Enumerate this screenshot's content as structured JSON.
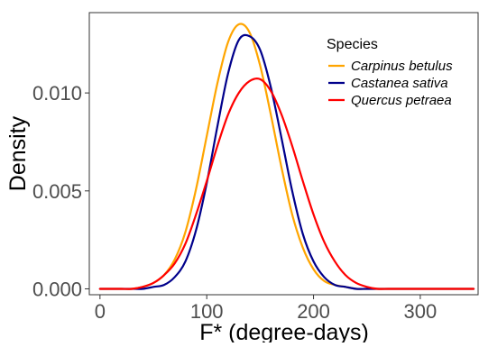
{
  "chart_data": {
    "type": "line",
    "title": "",
    "xlabel": "F* (degree-days)",
    "ylabel": "Density",
    "xlim": [
      -10,
      355
    ],
    "ylim": [
      -0.0003,
      0.0141
    ],
    "xticks": [
      0,
      100,
      200,
      300
    ],
    "xtick_labels": [
      "0",
      "100",
      "200",
      "300"
    ],
    "yticks": [
      0.0,
      0.005,
      0.01
    ],
    "ytick_labels": [
      "0.000",
      "0.005",
      "0.010"
    ],
    "grid": false,
    "legend": {
      "title": "Species",
      "position": "top-right"
    },
    "x": [
      0,
      10,
      20,
      30,
      40,
      50,
      60,
      70,
      80,
      90,
      100,
      110,
      120,
      130,
      140,
      150,
      160,
      170,
      180,
      190,
      200,
      210,
      220,
      230,
      240,
      250,
      260,
      270,
      280,
      290,
      300,
      310,
      320,
      330,
      340,
      350
    ],
    "series": [
      {
        "name": "Carpinus betulus",
        "color": "#FFA500",
        "values": [
          0.0,
          0.0,
          0.0,
          0.0,
          0.0001,
          0.0003,
          0.0007,
          0.0015,
          0.0029,
          0.0051,
          0.0078,
          0.0105,
          0.0126,
          0.0135,
          0.0131,
          0.0114,
          0.0089,
          0.0062,
          0.0038,
          0.0021,
          0.001,
          0.0004,
          0.0002,
          0.0001,
          0.0,
          0.0,
          0.0,
          0.0,
          0.0,
          0.0,
          0.0,
          0.0,
          0.0,
          0.0,
          0.0,
          0.0
        ]
      },
      {
        "name": "Castanea sativa",
        "color": "#00008B",
        "values": [
          0.0,
          0.0,
          0.0,
          0.0,
          0.0,
          0.0001,
          0.0002,
          0.0006,
          0.0014,
          0.003,
          0.0054,
          0.0083,
          0.011,
          0.0127,
          0.0129,
          0.0122,
          0.0103,
          0.0077,
          0.005,
          0.0028,
          0.0014,
          0.0006,
          0.0002,
          0.0001,
          0.0,
          0.0,
          0.0,
          0.0,
          0.0,
          0.0,
          0.0,
          0.0,
          0.0,
          0.0,
          0.0,
          0.0
        ]
      },
      {
        "name": "Quercus petraea",
        "color": "#FF0000",
        "values": [
          0.0,
          0.0,
          0.0,
          0.0,
          0.0001,
          0.0003,
          0.0007,
          0.0013,
          0.0023,
          0.0038,
          0.0055,
          0.0073,
          0.0089,
          0.01,
          0.0106,
          0.0107,
          0.0101,
          0.0089,
          0.0073,
          0.0055,
          0.0038,
          0.0024,
          0.0014,
          0.0007,
          0.0003,
          0.0001,
          0.0,
          0.0,
          0.0,
          0.0,
          0.0,
          0.0,
          0.0,
          0.0,
          0.0,
          0.0
        ]
      }
    ]
  }
}
